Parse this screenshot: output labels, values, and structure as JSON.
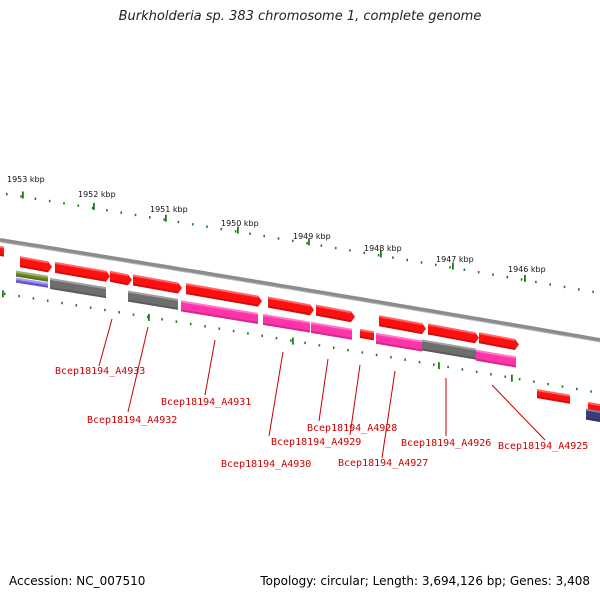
{
  "title": "Burkholderia sp. 383 chromosome 1, complete genome",
  "footer": {
    "accession": "Accession: NC_007510",
    "stats": "Topology: circular; Length: 3,694,126 bp; Genes: 3,408"
  },
  "colors": {
    "backbone": "#8c8c8c",
    "tick": "#1f7a1f",
    "label": "#cc0000",
    "cds_forward": "#ff1010",
    "cds_reverse": "#ff1010",
    "gene_gray": "#6e6e6e",
    "gene_pink": "#ff33aa",
    "gene_olive": "#6b8e23",
    "gene_purple": "#7b68ee",
    "gene_navy": "#3c3c78"
  },
  "scale_labels": [
    "1953 kbp",
    "1952 kbp",
    "1951 kbp",
    "1950 kbp",
    "1949 kbp",
    "1948 kbp",
    "1947 kbp",
    "1946 kbp"
  ],
  "gene_labels": [
    "Bcep18194_A4933",
    "Bcep18194_A4932",
    "Bcep18194_A4931",
    "Bcep18194_A4930",
    "Bcep18194_A4929",
    "Bcep18194_A4928",
    "Bcep18194_A4927",
    "Bcep18194_A4926",
    "Bcep18194_A4925"
  ]
}
